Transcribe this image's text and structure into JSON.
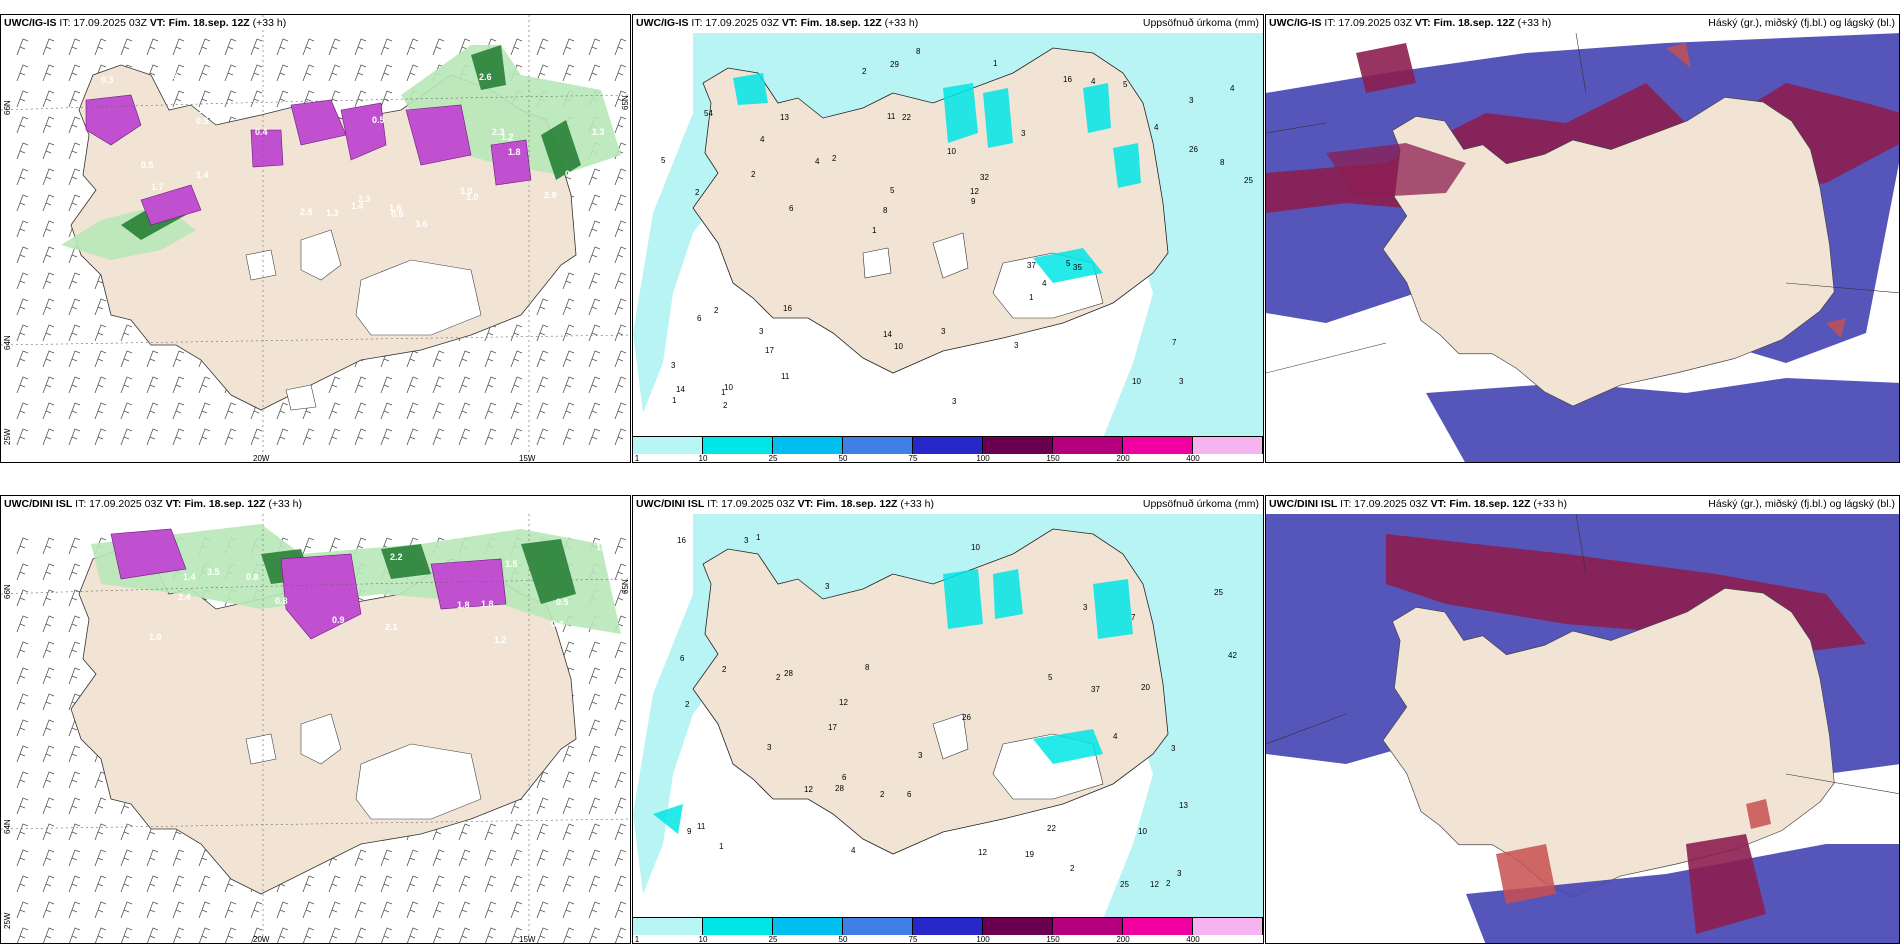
{
  "rows": [
    {
      "model": "UWC/IG-IS",
      "it": "IT: 17.09.2025 03Z",
      "vt_label": "VT:",
      "vt": "Fim. 18.sep. 12Z",
      "lead": "(+33 h)"
    },
    {
      "model": "UWC/DINI ISL",
      "it": "IT: 17.09.2025 03Z",
      "vt_label": "VT:",
      "vt": "Fim. 18.sep. 12Z",
      "lead": "(+33 h)"
    }
  ],
  "precip_title": "Uppsöfnuð úrkoma (mm)",
  "cloud_title": "Háský (gr.), miðský (fj.bl.) og lágský (bl.)",
  "axis_labels": {
    "lat66": "66N",
    "lat64": "64N",
    "lon20": "20W",
    "lon15": "15W",
    "lon25": "25W",
    "lat65": "65N"
  },
  "colorbar": {
    "ticks": [
      "1",
      "10",
      "25",
      "50",
      "75",
      "100",
      "150",
      "200",
      "400"
    ],
    "colors": [
      "#b8f5f5",
      "#00e5e5",
      "#00bff0",
      "#3f7fe6",
      "#2828c8",
      "#6b0050",
      "#b4007e",
      "#f000a0",
      "#f5b4f0"
    ]
  },
  "colors": {
    "land": "#f2e4d4",
    "sea_light": "#b9f4f4",
    "green_light": "#b8e8b8",
    "green_dark": "#1e7a2e",
    "magenta": "#c050d0",
    "cloud_high": "#4646b4",
    "cloud_mid": "#8c1e50",
    "cloud_low": "#c85050"
  },
  "precip_values_top": [
    "3",
    "2",
    "3",
    "1",
    "3",
    "10",
    "11",
    "10",
    "2",
    "2",
    "3",
    "17",
    "22",
    "32",
    "35",
    "54",
    "29",
    "25",
    "37",
    "26",
    "8",
    "14",
    "5",
    "13",
    "16",
    "16",
    "10",
    "7",
    "5",
    "3",
    "4",
    "2",
    "1",
    "11",
    "8",
    "12",
    "14",
    "10",
    "9",
    "6",
    "4",
    "4",
    "4",
    "3",
    "3",
    "2",
    "1",
    "3",
    "5",
    "8",
    "6",
    "5",
    "4",
    "4",
    "1",
    "1",
    "2"
  ],
  "precip_values_bottom": [
    "3",
    "2",
    "3",
    "4",
    "2",
    "3",
    "6",
    "17",
    "28",
    "37",
    "20",
    "10",
    "16",
    "25",
    "12",
    "22",
    "26",
    "42",
    "25",
    "8",
    "12",
    "28",
    "19",
    "12",
    "10",
    "5",
    "12",
    "11",
    "7",
    "9",
    "6",
    "2",
    "1",
    "13",
    "3",
    "6",
    "2",
    "1",
    "3",
    "4",
    "2",
    "3",
    "3",
    "2"
  ],
  "temp_values_top": [
    "2.5",
    "2.3",
    "0.5",
    "0.3",
    "1.3",
    "1.7",
    "1.4",
    "0.5",
    "2.3",
    "1.6",
    "1.4",
    "2.9",
    "1.3",
    "3.6",
    "2.6",
    "0.6",
    "1.0",
    "1.0",
    "0.9",
    "1.2",
    "0.6",
    "1.8",
    "0.5",
    "0.4",
    "1.6"
  ],
  "temp_values_bottom": [
    "2.2",
    "1.8",
    "0.8",
    "2.4",
    "3.5",
    "0.9",
    "1.5",
    "0.4",
    "2.1",
    "0.5",
    "1.4",
    "1.1",
    "1.2",
    "0.8",
    "1.0",
    "1.8"
  ]
}
